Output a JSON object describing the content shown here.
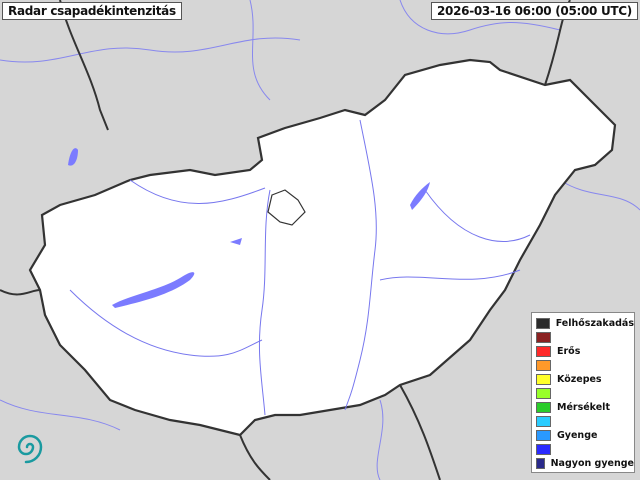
{
  "header": {
    "title": "Radar csapadékintenzitás",
    "timestamp": "2026-03-16 06:00 (05:00 UTC)"
  },
  "map": {
    "country": "Hungary",
    "background_color": "#d6d6d6",
    "country_fill": "#ffffff",
    "water_color": "#7b7bff",
    "border_color": "#333333",
    "precipitation_visible": false
  },
  "legend": {
    "items": [
      {
        "label": "Felhőszakadás",
        "color": "#2b2b2b"
      },
      {
        "label": "",
        "color": "#8b2222"
      },
      {
        "label": "Erős",
        "color": "#ff2a2a"
      },
      {
        "label": "",
        "color": "#ff992a"
      },
      {
        "label": "Közepes",
        "color": "#ffff2a"
      },
      {
        "label": "",
        "color": "#99ff2a"
      },
      {
        "label": "Mérsékelt",
        "color": "#2acc2a"
      },
      {
        "label": "",
        "color": "#2accff"
      },
      {
        "label": "Gyenge",
        "color": "#2a99ff"
      },
      {
        "label": "",
        "color": "#2a2aff"
      },
      {
        "label": "Nagyon gyenge",
        "color": "#2a2a8b"
      }
    ]
  },
  "logo": {
    "name": "spiral-logo",
    "color": "#1a9aa0"
  }
}
